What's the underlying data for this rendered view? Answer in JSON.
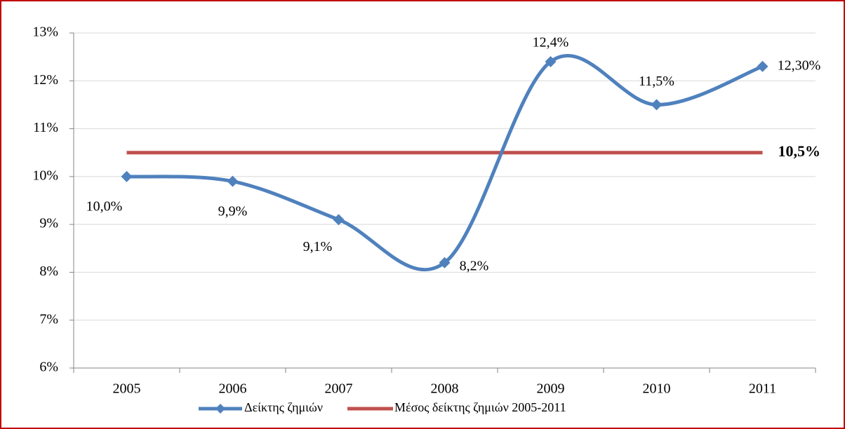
{
  "chart_data": {
    "type": "line",
    "categories": [
      "2005",
      "2006",
      "2007",
      "2008",
      "2009",
      "2010",
      "2011"
    ],
    "series": [
      {
        "name": "Δείκτης ζημιών",
        "color": "#4f81bd",
        "values": [
          10.0,
          9.9,
          9.1,
          8.2,
          12.4,
          11.5,
          12.3
        ],
        "value_labels": [
          "10,0%",
          "9,9%",
          "9,1%",
          "8,2%",
          "12,4%",
          "11,5%",
          "12,30%"
        ],
        "smooth": true,
        "marker": "diamond"
      },
      {
        "name": "Μέσος δείκτης ζημιών 2005-2011",
        "color": "#c0504d",
        "values": [
          10.5,
          10.5,
          10.5,
          10.5,
          10.5,
          10.5,
          10.5
        ],
        "value_labels": [
          null,
          null,
          null,
          null,
          null,
          null,
          "10,5%"
        ]
      }
    ],
    "ylim": [
      6,
      13
    ],
    "yticks": [
      {
        "value": 6,
        "label": "6%"
      },
      {
        "value": 7,
        "label": "7%"
      },
      {
        "value": 8,
        "label": "8%"
      },
      {
        "value": 9,
        "label": "9%"
      },
      {
        "value": 10,
        "label": "10%"
      },
      {
        "value": 11,
        "label": "11%"
      },
      {
        "value": 12,
        "label": "12%"
      },
      {
        "value": 13,
        "label": "13%"
      }
    ],
    "grid": true,
    "legend": "bottom"
  }
}
